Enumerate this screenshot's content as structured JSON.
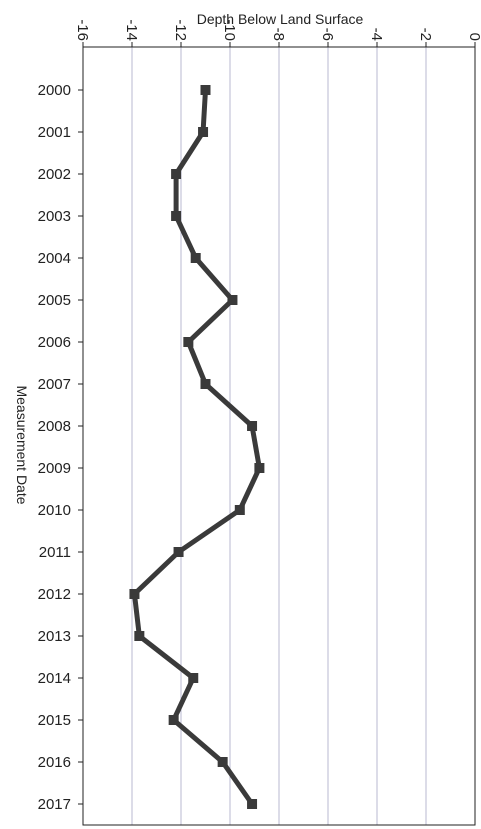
{
  "chart_data": {
    "type": "line",
    "title": "",
    "xlabel": "Depth Below Land Surface",
    "ylabel": "Measurement Date",
    "xlim": [
      -16,
      0
    ],
    "x_ticks": [
      "-16",
      "-14",
      "-12",
      "-10",
      "-8",
      "-6",
      "-4",
      "-2",
      "0"
    ],
    "x_axis_position": "top",
    "x_tick_labels_rotated": true,
    "grid": "vertical",
    "categories": [
      "2000",
      "2001",
      "2002",
      "2003",
      "2004",
      "2005",
      "2006",
      "2007",
      "2008",
      "2009",
      "2010",
      "2011",
      "2012",
      "2013",
      "2014",
      "2015",
      "2016",
      "2017"
    ],
    "series": [
      {
        "values": [
          -11.0,
          -11.1,
          -12.2,
          -12.2,
          -11.4,
          -9.9,
          -11.7,
          -11.0,
          -9.1,
          -8.8,
          -9.6,
          -12.1,
          -13.9,
          -13.7,
          -11.5,
          -12.3,
          -10.3,
          -9.1
        ]
      }
    ],
    "colors": {
      "line": "#3a3a3a",
      "grid": "#b8b8d0",
      "axis": "#222222"
    }
  }
}
